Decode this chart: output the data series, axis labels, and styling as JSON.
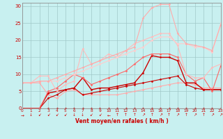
{
  "background_color": "#c8f0f0",
  "grid_color": "#a0c8c8",
  "xlabel": "Vent moyen/en rafales ( km/h )",
  "xlim": [
    0,
    23
  ],
  "ylim": [
    0,
    31
  ],
  "yticks": [
    0,
    5,
    10,
    15,
    20,
    25,
    30
  ],
  "xticks": [
    0,
    1,
    2,
    3,
    4,
    5,
    6,
    7,
    8,
    9,
    10,
    11,
    12,
    13,
    14,
    15,
    16,
    17,
    18,
    19,
    20,
    21,
    22,
    23
  ],
  "lines": [
    {
      "x": [
        0,
        1,
        2,
        3,
        4,
        5,
        6,
        7,
        8,
        9,
        10,
        11,
        12,
        13,
        14,
        15,
        16,
        17,
        18,
        19,
        20,
        21,
        22,
        23
      ],
      "y": [
        0,
        0,
        0,
        0,
        0,
        0,
        0,
        0,
        0,
        0,
        0,
        0,
        0,
        0,
        0,
        0,
        0,
        0,
        0,
        0,
        0,
        0,
        0,
        0
      ],
      "color": "#cc0000",
      "lw": 0.8,
      "marker": "D",
      "ms": 1.5
    },
    {
      "x": [
        0,
        1,
        2,
        3,
        4,
        5,
        6,
        7,
        8,
        9,
        10,
        11,
        12,
        13,
        14,
        15,
        16,
        17,
        18,
        19,
        20,
        21,
        22,
        23
      ],
      "y": [
        7.5,
        7.5,
        7.5,
        4,
        3,
        5,
        5.5,
        4,
        4,
        4,
        4,
        4,
        4.5,
        5,
        5.5,
        6,
        6.5,
        7,
        7.5,
        7.5,
        7,
        6,
        6,
        6
      ],
      "color": "#ffaaaa",
      "lw": 0.8,
      "marker": "D",
      "ms": 1.5
    },
    {
      "x": [
        0,
        1,
        2,
        3,
        4,
        5,
        6,
        7,
        8,
        9,
        10,
        11,
        12,
        13,
        14,
        15,
        16,
        17,
        18,
        19,
        20,
        21,
        22,
        23
      ],
      "y": [
        0,
        0,
        0,
        4.5,
        5,
        5.5,
        6,
        9,
        5.5,
        6,
        6,
        6.5,
        7,
        7.5,
        10.5,
        15.5,
        15,
        15,
        14,
        7.5,
        7.5,
        5.5,
        5.5,
        5.5
      ],
      "color": "#cc0000",
      "lw": 1.0,
      "marker": "D",
      "ms": 1.5
    },
    {
      "x": [
        0,
        1,
        2,
        3,
        4,
        5,
        6,
        7,
        8,
        9,
        10,
        11,
        12,
        13,
        14,
        15,
        16,
        17,
        18,
        19,
        20,
        21,
        22,
        23
      ],
      "y": [
        0,
        0,
        0,
        3,
        4,
        5.5,
        6,
        4,
        4.5,
        5,
        5.5,
        6,
        6.5,
        7,
        7.5,
        8,
        8.5,
        9,
        9.5,
        7,
        6,
        5.5,
        5.5,
        5.5
      ],
      "color": "#cc0000",
      "lw": 0.8,
      "marker": "D",
      "ms": 1.5
    },
    {
      "x": [
        0,
        1,
        2,
        3,
        4,
        5,
        6,
        7,
        8,
        9,
        10,
        11,
        12,
        13,
        14,
        15,
        16,
        17,
        18,
        19,
        20,
        21,
        22,
        23
      ],
      "y": [
        0,
        0,
        0,
        5,
        6,
        8,
        10,
        9,
        7,
        8,
        9,
        10,
        11,
        13,
        15,
        16,
        16,
        16,
        15,
        10,
        8,
        9,
        5,
        12.5
      ],
      "color": "#ff6666",
      "lw": 0.8,
      "marker": "D",
      "ms": 1.5
    },
    {
      "x": [
        0,
        1,
        2,
        3,
        4,
        5,
        6,
        7,
        8,
        9,
        10,
        11,
        12,
        13,
        14,
        15,
        16,
        17,
        18,
        19,
        20,
        21,
        22,
        23
      ],
      "y": [
        7.5,
        7.5,
        9.5,
        9.5,
        5,
        7,
        8,
        17.5,
        13,
        14,
        16,
        15,
        17,
        19,
        20,
        21,
        22,
        22,
        18.5,
        10,
        9,
        9,
        12,
        13
      ],
      "color": "#ffbbbb",
      "lw": 0.8,
      "marker": "D",
      "ms": 1.5
    },
    {
      "x": [
        0,
        1,
        2,
        3,
        4,
        5,
        6,
        7,
        8,
        9,
        10,
        11,
        12,
        13,
        14,
        15,
        16,
        17,
        18,
        19,
        20,
        21,
        22,
        23
      ],
      "y": [
        7.5,
        7.5,
        8,
        8,
        8,
        9,
        10,
        11,
        12,
        13,
        14,
        15,
        16,
        17,
        18,
        20,
        21,
        21,
        19,
        19,
        18,
        18,
        16.5,
        25
      ],
      "color": "#ffcccc",
      "lw": 0.8,
      "marker": "D",
      "ms": 1.5
    },
    {
      "x": [
        0,
        1,
        2,
        3,
        4,
        5,
        6,
        7,
        8,
        9,
        10,
        11,
        12,
        13,
        14,
        15,
        16,
        17,
        18,
        19,
        20,
        21,
        22,
        23
      ],
      "y": [
        7.5,
        7.5,
        8,
        8,
        9,
        10,
        11,
        12,
        13,
        14,
        15,
        16,
        17,
        18,
        26.5,
        29.5,
        30.5,
        30.5,
        22,
        19,
        18.5,
        18,
        17,
        24.5
      ],
      "color": "#ffaaaa",
      "lw": 0.8,
      "marker": "D",
      "ms": 1.5
    }
  ],
  "wind_arrows": [
    "→",
    "↓",
    "↙",
    "↙",
    "↙",
    "↙",
    "↓",
    "↓",
    "↙",
    "↙",
    "←",
    "↑",
    "↑",
    "↑",
    "↗",
    "↑",
    "↗",
    "↑",
    "↗",
    "↑",
    "↗",
    "↑",
    "↗",
    "↗"
  ]
}
